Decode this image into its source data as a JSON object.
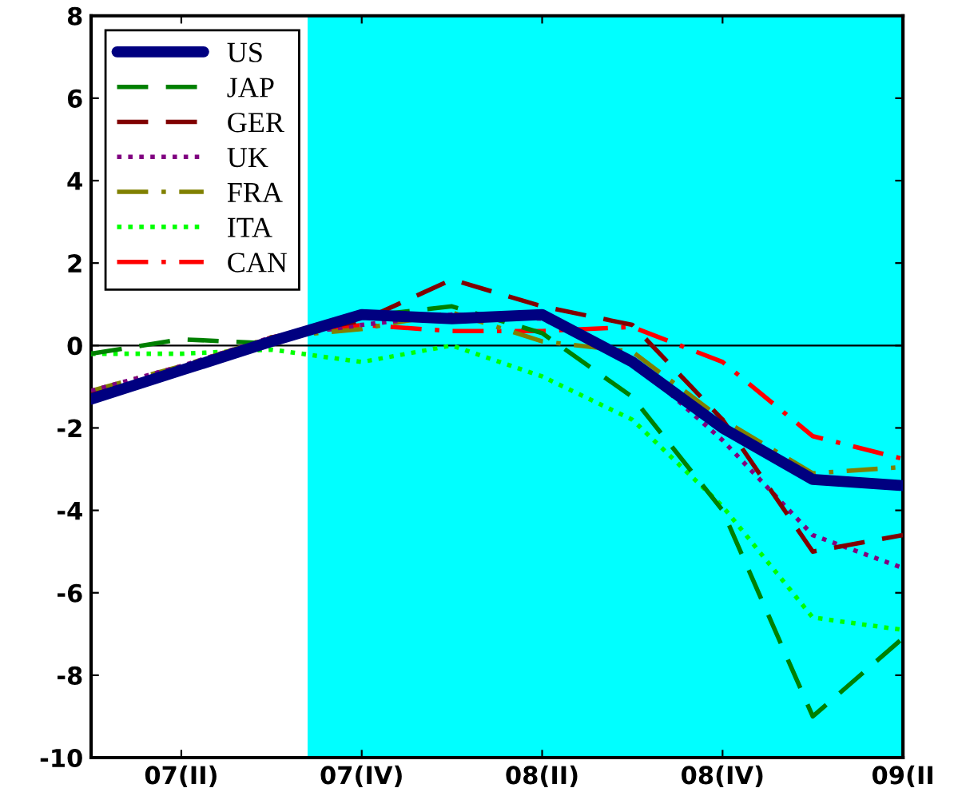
{
  "chart_data": {
    "type": "line",
    "categories": [
      null,
      "07(II)",
      null,
      "07(IV)",
      null,
      "08(II)",
      null,
      "08(IV)",
      null,
      "09(II"
    ],
    "ylim": [
      -10,
      8
    ],
    "yticks": [
      -10,
      -8,
      -6,
      -4,
      -2,
      0,
      2,
      4,
      6,
      8
    ],
    "series": [
      {
        "name": "US",
        "color": "#000080",
        "line_style": "solid",
        "values": [
          -1.3,
          -0.6,
          0.1,
          0.75,
          0.65,
          0.75,
          -0.4,
          -2.0,
          -3.25,
          -3.4
        ]
      },
      {
        "name": "JAP",
        "color": "#008000",
        "line_style": "dashed",
        "values": [
          -0.2,
          0.15,
          0.05,
          0.7,
          0.95,
          0.3,
          -1.25,
          -4.0,
          -9.0,
          -7.1
        ]
      },
      {
        "name": "GER",
        "color": "#800000",
        "line_style": "dashed",
        "values": [
          -1.2,
          -0.6,
          0.2,
          0.6,
          1.6,
          0.95,
          0.5,
          -1.8,
          -5.0,
          -4.6
        ]
      },
      {
        "name": "UK",
        "color": "#800080",
        "line_style": "dotted",
        "values": [
          -1.1,
          -0.5,
          0.2,
          0.5,
          0.75,
          0.65,
          -0.35,
          -2.3,
          -4.6,
          -5.4
        ]
      },
      {
        "name": "FRA",
        "color": "#808000",
        "line_style": "dashdot",
        "values": [
          -1.1,
          -0.5,
          0.2,
          0.4,
          0.8,
          0.1,
          -0.15,
          -1.8,
          -3.1,
          -2.95
        ]
      },
      {
        "name": "ITA",
        "color": "#00ff00",
        "line_style": "dotted",
        "values": [
          -0.2,
          -0.2,
          -0.1,
          -0.4,
          0.0,
          -0.75,
          -1.8,
          -3.9,
          -6.6,
          -6.9
        ]
      },
      {
        "name": "CAN",
        "color": "#ff0000",
        "line_style": "dashdot",
        "values": [
          -1.3,
          -0.6,
          0.2,
          0.5,
          0.35,
          0.35,
          0.45,
          -0.4,
          -2.2,
          -2.75
        ]
      }
    ],
    "ref_lines": [
      {
        "axis": "y",
        "value": 0,
        "color": "#000000",
        "line_style": "solid"
      }
    ],
    "grid": false,
    "legend": "top left"
  }
}
